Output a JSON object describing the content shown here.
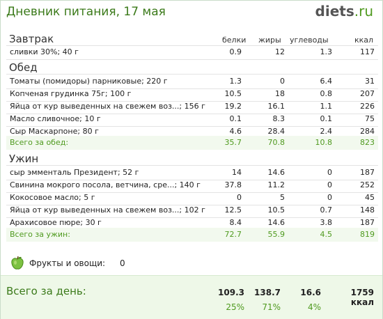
{
  "header": {
    "title": "Дневник питания, 17 мая",
    "brand_main": "diets",
    "brand_tld": ".ru"
  },
  "columns": [
    "белки",
    "жиры",
    "углеводы",
    "ккал"
  ],
  "breakfast": {
    "title": "Завтрак",
    "items": [
      {
        "name": "сливки 30%; 40 г",
        "protein": "0.9",
        "fat": "12",
        "carbs": "1.3",
        "kcal": "117"
      }
    ]
  },
  "lunch": {
    "title": "Обед",
    "items": [
      {
        "name": "Томаты (помидоры) парниковые; 220 г",
        "protein": "1.3",
        "fat": "0",
        "carbs": "6.4",
        "kcal": "31"
      },
      {
        "name": "Копченая грудинка 75г; 100 г",
        "protein": "10.5",
        "fat": "18",
        "carbs": "0.8",
        "kcal": "207"
      },
      {
        "name": "Яйца от кур выведенных на свежем воз...; 156 г",
        "protein": "19.2",
        "fat": "16.1",
        "carbs": "1.1",
        "kcal": "226"
      },
      {
        "name": "Масло сливочное; 10 г",
        "protein": "0.1",
        "fat": "8.3",
        "carbs": "0.1",
        "kcal": "75"
      },
      {
        "name": "Сыр Маскарпоне; 80 г",
        "protein": "4.6",
        "fat": "28.4",
        "carbs": "2.4",
        "kcal": "284"
      }
    ],
    "total": {
      "label": "Всего за обед:",
      "protein": "35.7",
      "fat": "70.8",
      "carbs": "10.8",
      "kcal": "823"
    }
  },
  "dinner": {
    "title": "Ужин",
    "items": [
      {
        "name": "сыр эмменталь Президент; 52 г",
        "protein": "14",
        "fat": "14.6",
        "carbs": "0",
        "kcal": "187"
      },
      {
        "name": "Свинина мокрого посола, ветчина, сре...; 140 г",
        "protein": "37.8",
        "fat": "11.2",
        "carbs": "0",
        "kcal": "252"
      },
      {
        "name": "Кокосовое масло; 5 г",
        "protein": "0",
        "fat": "5",
        "carbs": "0",
        "kcal": "45"
      },
      {
        "name": "Яйца от кур выведенных на свежем воз...; 102 г",
        "protein": "12.5",
        "fat": "10.5",
        "carbs": "0.7",
        "kcal": "148"
      },
      {
        "name": "Арахисовое пюре; 30 г",
        "protein": "8.4",
        "fat": "14.6",
        "carbs": "3.8",
        "kcal": "187"
      }
    ],
    "total": {
      "label": "Всего за ужин:",
      "protein": "72.7",
      "fat": "55.9",
      "carbs": "4.5",
      "kcal": "819"
    }
  },
  "fruits": {
    "label": "Фрукты и овощи:",
    "value": "0",
    "icon": "apple-icon"
  },
  "day_total": {
    "label": "Всего за день:",
    "protein": "109.3",
    "fat": "138.7",
    "carbs": "16.6",
    "kcal": "1759 ккал",
    "protein_pct": "25%",
    "fat_pct": "71%",
    "carbs_pct": "4%"
  },
  "colors": {
    "accent_green": "#4f9a1f",
    "title_green": "#3b7a1a",
    "total_bg": "#f2f9ee",
    "day_bg": "#eef8e8"
  }
}
